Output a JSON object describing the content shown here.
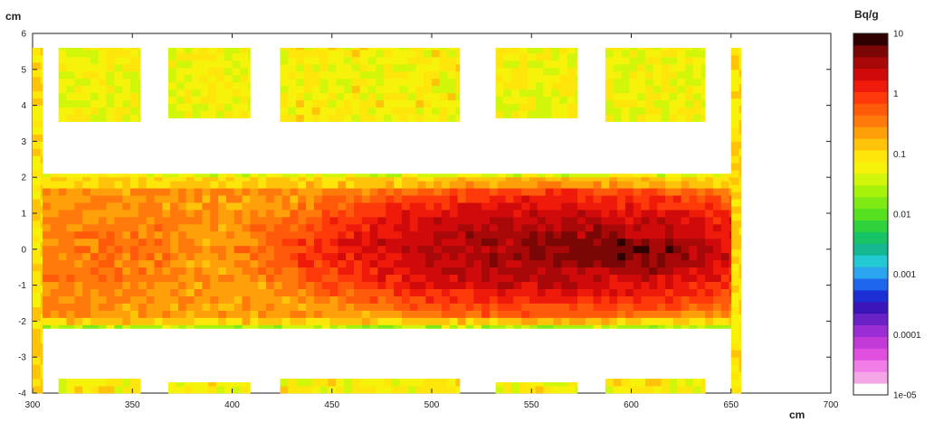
{
  "chart_data": {
    "type": "heatmap",
    "xlabel": "cm",
    "ylabel": "cm",
    "colorbar_title": "Bq/g",
    "xlim": [
      300,
      700
    ],
    "ylim": [
      -4,
      6
    ],
    "x_ticks": [
      "300",
      "350",
      "400",
      "450",
      "500",
      "550",
      "600",
      "650",
      "700"
    ],
    "y_ticks": [
      "6",
      "5",
      "4",
      "3",
      "2",
      "1",
      "0",
      "-1",
      "-2",
      "-3",
      "-4"
    ],
    "colorbar_ticks": [
      "10",
      "1",
      "0.1",
      "0.01",
      "0.001",
      "0.0001",
      "1e-05"
    ],
    "colorbar_log_range": [
      -5,
      1
    ],
    "colorscale": [
      "#ffffff",
      "#f4a6e6",
      "#f07de8",
      "#e04fe0",
      "#c23ad8",
      "#9a2ed4",
      "#6a22c6",
      "#3a16b8",
      "#1c2fd6",
      "#1f66ee",
      "#2aa6f0",
      "#22c9d2",
      "#14b890",
      "#16c466",
      "#2fd23a",
      "#56e020",
      "#7eea14",
      "#a6f20a",
      "#d2f60a",
      "#f6f20a",
      "#ffe60a",
      "#ffc40a",
      "#ffa00a",
      "#ff7a0a",
      "#ff5a0a",
      "#ff3a0a",
      "#f01a0a",
      "#d00a0a",
      "#a80808",
      "#7a0606",
      "#300000"
    ],
    "regions": [
      {
        "name": "upper block 1",
        "x": [
          313,
          354
        ],
        "y": [
          3.55,
          5.6
        ],
        "value_bq_g": 0.06
      },
      {
        "name": "upper block 2",
        "x": [
          368,
          409
        ],
        "y": [
          3.65,
          5.6
        ],
        "value_bq_g": 0.06
      },
      {
        "name": "upper block 3",
        "x": [
          424,
          514
        ],
        "y": [
          3.55,
          5.6
        ],
        "value_bq_g": 0.07
      },
      {
        "name": "upper block 4",
        "x": [
          532,
          573
        ],
        "y": [
          3.65,
          5.6
        ],
        "value_bq_g": 0.06
      },
      {
        "name": "upper block 5",
        "x": [
          587,
          637
        ],
        "y": [
          3.55,
          5.6
        ],
        "value_bq_g": 0.06
      },
      {
        "name": "lower block 1",
        "x": [
          313,
          354
        ],
        "y": [
          -4,
          -3.6
        ],
        "value_bq_g": 0.07
      },
      {
        "name": "lower block 2",
        "x": [
          368,
          409
        ],
        "y": [
          -4,
          -3.7
        ],
        "value_bq_g": 0.07
      },
      {
        "name": "lower block 3",
        "x": [
          424,
          514
        ],
        "y": [
          -4,
          -3.6
        ],
        "value_bq_g": 0.07
      },
      {
        "name": "lower block 4",
        "x": [
          532,
          573
        ],
        "y": [
          -4,
          -3.7
        ],
        "value_bq_g": 0.07
      },
      {
        "name": "lower block 5",
        "x": [
          587,
          637
        ],
        "y": [
          -4,
          -3.6
        ],
        "value_bq_g": 0.07
      },
      {
        "name": "left wall",
        "x": [
          300,
          305
        ],
        "y": [
          -4,
          5.6
        ],
        "value_bq_g": 0.1
      },
      {
        "name": "right wall",
        "x": [
          650,
          655
        ],
        "y": [
          -4,
          5.6
        ],
        "value_bq_g": 0.1
      },
      {
        "name": "upper rim",
        "x": [
          305,
          650
        ],
        "y": [
          2.0,
          2.1
        ],
        "value_bq_g": 0.05
      },
      {
        "name": "lower rim",
        "x": [
          305,
          650
        ],
        "y": [
          -2.2,
          -2.1
        ],
        "value_bq_g": 0.03
      }
    ],
    "main_field": {
      "x": [
        305,
        650
      ],
      "y": [
        -2.1,
        2.0
      ],
      "background_bq_g": 0.25
    },
    "hotspots": [
      {
        "x": 560,
        "y": 0.0,
        "sx": 70,
        "sy": 0.9,
        "peak_bq_g": 4.0
      },
      {
        "x": 600,
        "y": -0.1,
        "sx": 30,
        "sy": 0.45,
        "peak_bq_g": 6.0
      },
      {
        "x": 330,
        "y": 0.0,
        "sx": 55,
        "sy": 1.7,
        "peak_bq_g": 0.4
      },
      {
        "x": 420,
        "y": 0.1,
        "sx": 60,
        "sy": 1.4,
        "peak_bq_g": 0.3
      },
      {
        "x": 500,
        "y": 0.1,
        "sx": 50,
        "sy": 0.8,
        "peak_bq_g": 1.2
      }
    ],
    "grid": false
  }
}
